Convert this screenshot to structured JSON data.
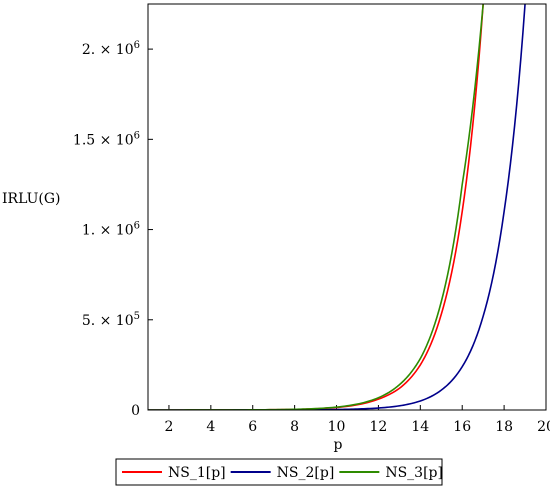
{
  "chart_data": {
    "type": "line",
    "xlabel": "p",
    "ylabel": "IRLU(G)",
    "xlim": [
      1,
      20
    ],
    "ylim": [
      0,
      2250000
    ],
    "x_ticks": [
      2,
      4,
      6,
      8,
      10,
      12,
      14,
      16,
      18,
      20
    ],
    "x_tick_labels": [
      "2",
      "4",
      "6",
      "8",
      "10",
      "12",
      "14",
      "16",
      "18",
      "20"
    ],
    "y_ticks": [
      {
        "value": 0,
        "mantissa": "0",
        "exponent": ""
      },
      {
        "value": 500000,
        "mantissa": "5. × 10",
        "exponent": "5"
      },
      {
        "value": 1000000,
        "mantissa": "1. × 10",
        "exponent": "6"
      },
      {
        "value": 1500000,
        "mantissa": "1.5 × 10",
        "exponent": "6"
      },
      {
        "value": 2000000,
        "mantissa": "2. × 10",
        "exponent": "6"
      }
    ],
    "legend_position": "bottom",
    "grid": false,
    "x": [
      1,
      2,
      3,
      4,
      5,
      6,
      7,
      8,
      9,
      10,
      11,
      12,
      13,
      14,
      15,
      16,
      17,
      18,
      19,
      20
    ],
    "series": [
      {
        "name": "NS_1[p]",
        "color": "#ff0000",
        "values": [
          0,
          25,
          100,
          190,
          400,
          840,
          1700,
          3400,
          7000,
          14000,
          29000,
          60000,
          120000,
          250000,
          530000,
          1100000,
          2250000,
          null,
          null,
          null
        ]
      },
      {
        "name": "NS_2[p]",
        "color": "#00008b",
        "values": [
          0,
          5,
          20,
          40,
          80,
          170,
          330,
          670,
          1350,
          2700,
          5500,
          11000,
          23000,
          50000,
          110000,
          240000,
          520000,
          1100000,
          2250000,
          null
        ]
      },
      {
        "name": "NS_3[p]",
        "color": "#2e8b00",
        "values": [
          0,
          30,
          110,
          210,
          450,
          930,
          1900,
          3800,
          7800,
          16000,
          33000,
          68000,
          140000,
          285000,
          600000,
          1250000,
          2250000,
          null,
          null,
          null
        ]
      }
    ]
  }
}
